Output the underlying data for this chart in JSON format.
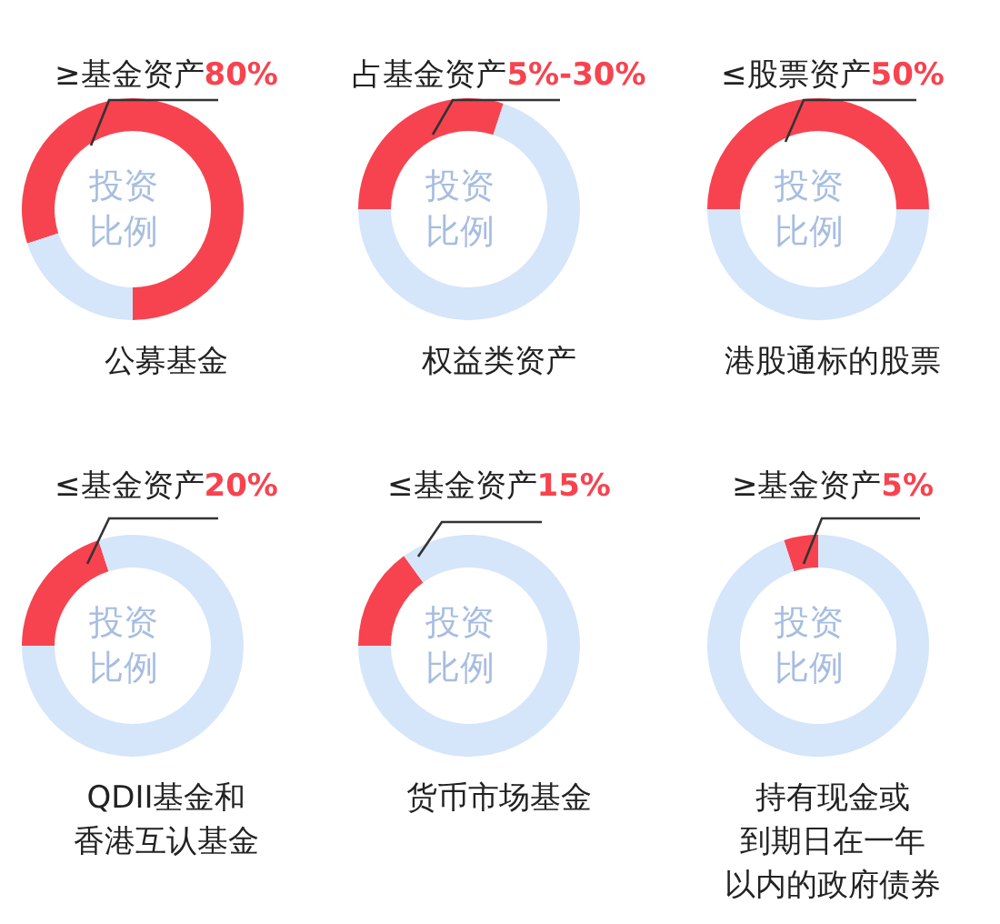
{
  "chart_data": [
    {
      "type": "donut",
      "title": "≥基金资产80%",
      "xlabel": "公募基金",
      "annotations": [
        "投资比例"
      ],
      "categories": [
        null,
        null
      ],
      "values": [
        80,
        20
      ],
      "colors": [
        "#f7434f",
        "#d5e5fa"
      ]
    },
    {
      "type": "donut",
      "title": "占基金资产5%-30%",
      "xlabel": "权益类资产",
      "annotations": [
        "投资比例"
      ],
      "categories": [
        null,
        null
      ],
      "values": [
        30,
        70
      ],
      "colors": [
        "#f7434f",
        "#d5e5fa"
      ]
    },
    {
      "type": "donut",
      "title": "≤股票资产50%",
      "xlabel": "港股通标的股票",
      "annotations": [
        "投资比例"
      ],
      "categories": [
        null,
        null
      ],
      "values": [
        50,
        50
      ],
      "colors": [
        "#f7434f",
        "#d5e5fa"
      ]
    },
    {
      "type": "donut",
      "title": "≤基金资产20%",
      "xlabel": "QDII基金和香港互认基金",
      "annotations": [
        "投资比例"
      ],
      "categories": [
        null,
        null
      ],
      "values": [
        20,
        80
      ],
      "colors": [
        "#f7434f",
        "#d5e5fa"
      ]
    },
    {
      "type": "donut",
      "title": "≤基金资产15%",
      "xlabel": "货币市场基金",
      "annotations": [
        "投资比例"
      ],
      "categories": [
        null,
        null
      ],
      "values": [
        15,
        85
      ],
      "colors": [
        "#f7434f",
        "#d5e5fa"
      ]
    },
    {
      "type": "donut",
      "title": "≥基金资产5%",
      "xlabel": "持有现金或到期日在一年以内的政府债券",
      "annotations": [
        "投资比例"
      ],
      "categories": [
        null,
        null
      ],
      "values": [
        5,
        95
      ],
      "colors": [
        "#f7434f",
        "#d5e5fa"
      ]
    }
  ]
}
